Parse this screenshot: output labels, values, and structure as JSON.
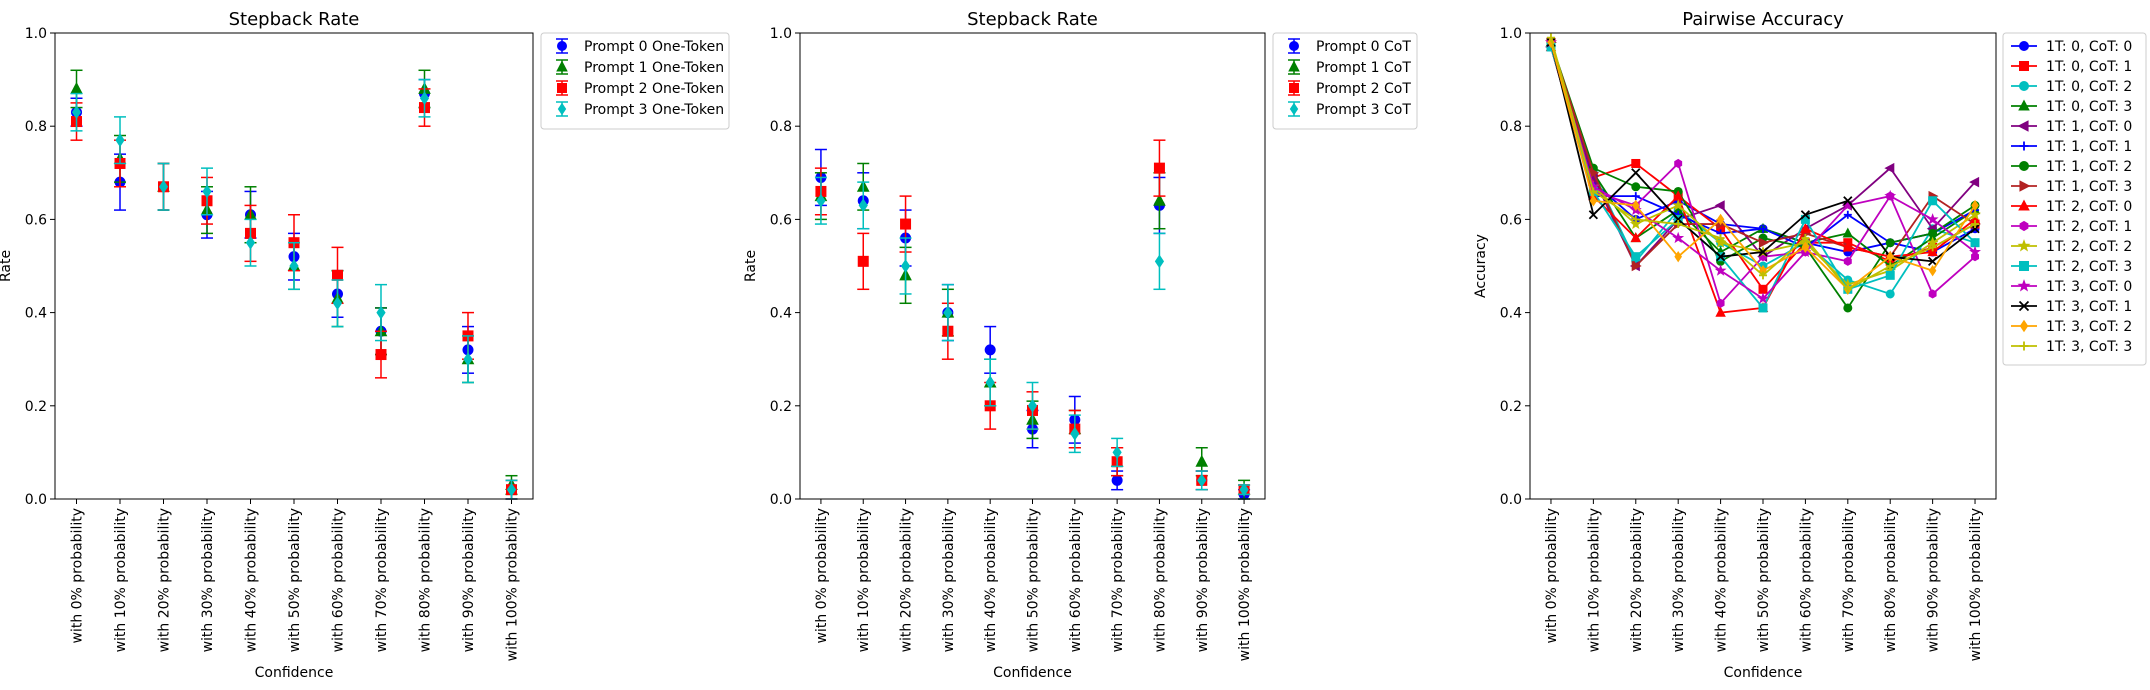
{
  "chart_data": [
    {
      "type": "scatter",
      "title": "Stepback Rate",
      "xlabel": "Confidence",
      "ylabel": "Rate",
      "ylim": [
        0,
        1
      ],
      "yticks": [
        "0.0",
        "0.2",
        "0.4",
        "0.6",
        "0.8",
        "1.0"
      ],
      "categories": [
        "with 0% probability",
        "with 10% probability",
        "with 20% probability",
        "with 30% probability",
        "with 40% probability",
        "with 50% probability",
        "with 60% probability",
        "with 70% probability",
        "with 80% probability",
        "with 90% probability",
        "with 100% probability"
      ],
      "error_bars": true,
      "legend_placement": "outside upper right",
      "series": [
        {
          "name": "Prompt 0 One-Token",
          "color": "#0000ff",
          "marker": "circle",
          "values": [
            0.83,
            0.68,
            0.67,
            0.61,
            0.61,
            0.52,
            0.44,
            0.36,
            0.87,
            0.32,
            0.02
          ],
          "errors": [
            0.03,
            0.06,
            0.05,
            0.05,
            0.05,
            0.05,
            0.05,
            0.05,
            0.03,
            0.05,
            0.02
          ]
        },
        {
          "name": "Prompt 1 One-Token",
          "color": "#008000",
          "marker": "triangle",
          "values": [
            0.88,
            0.73,
            0.67,
            0.62,
            0.61,
            0.5,
            0.43,
            0.36,
            0.88,
            0.3,
            0.03
          ],
          "errors": [
            0.04,
            0.05,
            0.05,
            0.05,
            0.06,
            0.05,
            0.06,
            0.05,
            0.04,
            0.05,
            0.02
          ]
        },
        {
          "name": "Prompt 2 One-Token",
          "color": "#ff0000",
          "marker": "square",
          "values": [
            0.81,
            0.72,
            0.67,
            0.64,
            0.57,
            0.55,
            0.48,
            0.31,
            0.84,
            0.35,
            0.02
          ],
          "errors": [
            0.04,
            0.05,
            0.05,
            0.05,
            0.06,
            0.06,
            0.06,
            0.05,
            0.04,
            0.05,
            0.02
          ]
        },
        {
          "name": "Prompt 3 One-Token",
          "color": "#00bfbf",
          "marker": "diamond",
          "values": [
            0.83,
            0.77,
            0.67,
            0.66,
            0.55,
            0.5,
            0.42,
            0.4,
            0.86,
            0.3,
            0.02
          ],
          "errors": [
            0.04,
            0.05,
            0.05,
            0.05,
            0.05,
            0.05,
            0.05,
            0.06,
            0.04,
            0.05,
            0.02
          ]
        }
      ]
    },
    {
      "type": "scatter",
      "title": "Stepback Rate",
      "xlabel": "Confidence",
      "ylabel": "Rate",
      "ylim": [
        0,
        1
      ],
      "yticks": [
        "0.0",
        "0.2",
        "0.4",
        "0.6",
        "0.8",
        "1.0"
      ],
      "categories": [
        "with 0% probability",
        "with 10% probability",
        "with 20% probability",
        "with 30% probability",
        "with 40% probability",
        "with 50% probability",
        "with 60% probability",
        "with 70% probability",
        "with 80% probability",
        "with 90% probability",
        "with 100% probability"
      ],
      "error_bars": true,
      "legend_placement": "outside upper right",
      "series": [
        {
          "name": "Prompt 0 CoT",
          "color": "#0000ff",
          "marker": "circle",
          "values": [
            0.69,
            0.64,
            0.56,
            0.4,
            0.32,
            0.15,
            0.17,
            0.04,
            0.63,
            0.04,
            0.01
          ],
          "errors": [
            0.06,
            0.06,
            0.06,
            0.06,
            0.05,
            0.04,
            0.05,
            0.02,
            0.06,
            0.02,
            0.01
          ]
        },
        {
          "name": "Prompt 1 CoT",
          "color": "#008000",
          "marker": "triangle",
          "values": [
            0.65,
            0.67,
            0.48,
            0.4,
            0.25,
            0.17,
            0.15,
            0.08,
            0.64,
            0.08,
            0.02
          ],
          "errors": [
            0.05,
            0.05,
            0.06,
            0.05,
            0.05,
            0.04,
            0.04,
            0.03,
            0.06,
            0.03,
            0.02
          ]
        },
        {
          "name": "Prompt 2 CoT",
          "color": "#ff0000",
          "marker": "square",
          "values": [
            0.66,
            0.51,
            0.59,
            0.36,
            0.2,
            0.19,
            0.15,
            0.08,
            0.71,
            0.04,
            0.02
          ],
          "errors": [
            0.05,
            0.06,
            0.06,
            0.06,
            0.05,
            0.04,
            0.04,
            0.03,
            0.06,
            0.02,
            0.01
          ]
        },
        {
          "name": "Prompt 3 CoT",
          "color": "#00bfbf",
          "marker": "diamond",
          "values": [
            0.64,
            0.63,
            0.5,
            0.4,
            0.25,
            0.2,
            0.14,
            0.1,
            0.51,
            0.04,
            0.02
          ],
          "errors": [
            0.05,
            0.05,
            0.06,
            0.06,
            0.05,
            0.05,
            0.04,
            0.03,
            0.06,
            0.02,
            0.01
          ]
        }
      ]
    },
    {
      "type": "line",
      "title": "Pairwise Accuracy",
      "xlabel": "Confidence",
      "ylabel": "Accuracy",
      "ylim": [
        0,
        1
      ],
      "yticks": [
        "0.0",
        "0.2",
        "0.4",
        "0.6",
        "0.8",
        "1.0"
      ],
      "categories": [
        "with 0% probability",
        "with 10% probability",
        "with 20% probability",
        "with 30% probability",
        "with 40% probability",
        "with 50% probability",
        "with 60% probability",
        "with 70% probability",
        "with 80% probability",
        "with 90% probability",
        "with 100% probability"
      ],
      "legend_placement": "outside upper right",
      "series": [
        {
          "name": "1T: 0, CoT: 0",
          "color": "#0000ff",
          "marker": "circle",
          "values": [
            0.98,
            0.68,
            0.6,
            0.64,
            0.59,
            0.58,
            0.55,
            0.53,
            0.55,
            0.53,
            0.58
          ]
        },
        {
          "name": "1T: 0, CoT: 1",
          "color": "#ff0000",
          "marker": "square",
          "values": [
            0.98,
            0.69,
            0.72,
            0.65,
            0.58,
            0.45,
            0.55,
            0.55,
            0.51,
            0.54,
            0.59
          ]
        },
        {
          "name": "1T: 0, CoT: 2",
          "color": "#00bfbf",
          "marker": "circle",
          "values": [
            0.97,
            0.7,
            0.51,
            0.62,
            0.55,
            0.5,
            0.55,
            0.47,
            0.44,
            0.58,
            0.55
          ]
        },
        {
          "name": "1T: 0, CoT: 3",
          "color": "#008000",
          "marker": "triangle",
          "values": [
            0.98,
            0.7,
            0.56,
            0.62,
            0.53,
            0.58,
            0.55,
            0.57,
            0.5,
            0.56,
            0.62
          ]
        },
        {
          "name": "1T: 1, CoT: 0",
          "color": "#800080",
          "marker": "triangle-left",
          "values": [
            0.97,
            0.69,
            0.5,
            0.6,
            0.63,
            0.52,
            0.58,
            0.63,
            0.71,
            0.58,
            0.68
          ]
        },
        {
          "name": "1T: 1, CoT: 1",
          "color": "#0000ff",
          "marker": "plus",
          "values": [
            0.97,
            0.65,
            0.65,
            0.61,
            0.57,
            0.58,
            0.54,
            0.61,
            0.55,
            0.57,
            0.62
          ]
        },
        {
          "name": "1T: 1, CoT: 2",
          "color": "#008000",
          "marker": "circle",
          "values": [
            0.98,
            0.71,
            0.67,
            0.66,
            0.51,
            0.56,
            0.54,
            0.41,
            0.55,
            0.57,
            0.63
          ]
        },
        {
          "name": "1T: 1, CoT: 3",
          "color": "#b22222",
          "marker": "triangle-right",
          "values": [
            0.98,
            0.7,
            0.5,
            0.59,
            0.59,
            0.55,
            0.57,
            0.54,
            0.52,
            0.65,
            0.59
          ]
        },
        {
          "name": "1T: 2, CoT: 0",
          "color": "#ff0000",
          "marker": "triangle",
          "values": [
            0.97,
            0.65,
            0.56,
            0.65,
            0.4,
            0.41,
            0.58,
            0.54,
            0.52,
            0.53,
            0.6
          ]
        },
        {
          "name": "1T: 2, CoT: 1",
          "color": "#bf00bf",
          "marker": "hexagon",
          "values": [
            0.98,
            0.66,
            0.63,
            0.72,
            0.42,
            0.52,
            0.53,
            0.51,
            0.65,
            0.44,
            0.52
          ]
        },
        {
          "name": "1T: 2, CoT: 2",
          "color": "#bfbf00",
          "marker": "star",
          "values": [
            0.98,
            0.67,
            0.59,
            0.63,
            0.55,
            0.53,
            0.55,
            0.46,
            0.49,
            0.55,
            0.61
          ]
        },
        {
          "name": "1T: 2, CoT: 3",
          "color": "#00bfbf",
          "marker": "square",
          "values": [
            0.97,
            0.66,
            0.52,
            0.6,
            0.52,
            0.41,
            0.6,
            0.45,
            0.48,
            0.64,
            0.55
          ]
        },
        {
          "name": "1T: 3, CoT: 0",
          "color": "#bf00bf",
          "marker": "star",
          "values": [
            0.98,
            0.67,
            0.62,
            0.56,
            0.49,
            0.43,
            0.53,
            0.63,
            0.65,
            0.6,
            0.53
          ]
        },
        {
          "name": "1T: 3, CoT: 1",
          "color": "#000000",
          "marker": "x",
          "values": [
            0.98,
            0.61,
            0.7,
            0.6,
            0.52,
            0.53,
            0.61,
            0.64,
            0.52,
            0.51,
            0.58
          ]
        },
        {
          "name": "1T: 3, CoT: 2",
          "color": "#ffa500",
          "marker": "diamond",
          "values": [
            0.98,
            0.64,
            0.63,
            0.52,
            0.6,
            0.49,
            0.54,
            0.45,
            0.52,
            0.49,
            0.63
          ]
        },
        {
          "name": "1T: 3, CoT: 3",
          "color": "#bfbf00",
          "marker": "plus",
          "values": [
            0.99,
            0.66,
            0.6,
            0.59,
            0.56,
            0.48,
            0.56,
            0.45,
            0.5,
            0.54,
            0.59
          ]
        }
      ]
    }
  ]
}
